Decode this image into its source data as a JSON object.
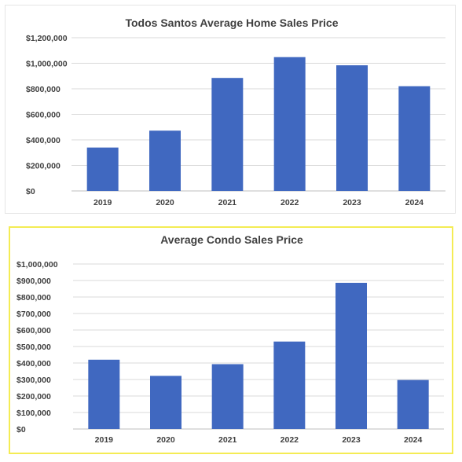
{
  "chart_data": [
    {
      "type": "bar",
      "title": "Todos Santos Average Home Sales Price",
      "categories": [
        "2019",
        "2020",
        "2021",
        "2022",
        "2023",
        "2024"
      ],
      "values": [
        340000,
        472000,
        885000,
        1048000,
        984000,
        820000
      ],
      "y_ticks": [
        "$0",
        "$200,000",
        "$400,000",
        "$600,000",
        "$800,000",
        "$1,000,000",
        "$1,200,000"
      ],
      "ylim": [
        0,
        1200000
      ],
      "grid": true,
      "bar_color": "#4068c0"
    },
    {
      "type": "bar",
      "title": "Average Condo Sales Price",
      "categories": [
        "2019",
        "2020",
        "2021",
        "2022",
        "2023",
        "2024"
      ],
      "values": [
        420000,
        322000,
        393000,
        530000,
        886000,
        297000
      ],
      "y_ticks": [
        "$0",
        "$100,000",
        "$200,000",
        "$300,000",
        "$400,000",
        "$500,000",
        "$600,000",
        "$700,000",
        "$800,000",
        "$900,000",
        "$1,000,000"
      ],
      "ylim": [
        0,
        1000000
      ],
      "grid": true,
      "bar_color": "#4068c0",
      "highlight_border_color": "#f4ec54"
    }
  ]
}
